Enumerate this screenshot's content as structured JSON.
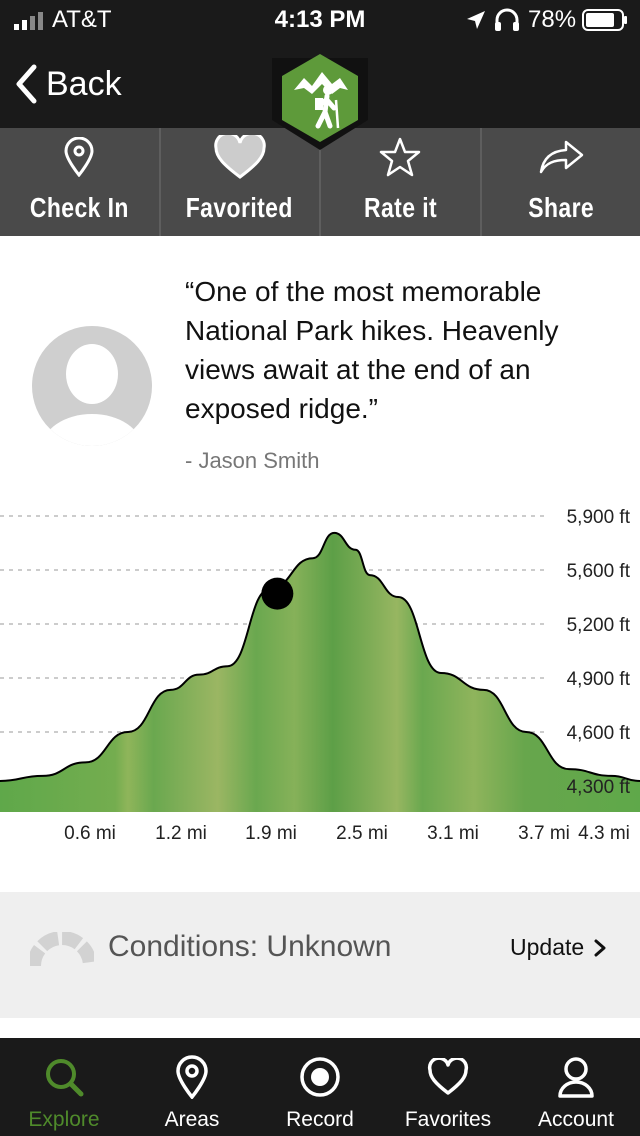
{
  "status_bar": {
    "carrier": "AT&T",
    "time": "4:13 PM",
    "battery": "78%"
  },
  "nav": {
    "back_label": "Back",
    "logo_icon": "hiker-icon"
  },
  "actions": [
    {
      "label": "Check In",
      "icon": "location-pin-icon"
    },
    {
      "label": "Favorited",
      "icon": "heart-filled-icon"
    },
    {
      "label": "Rate it",
      "icon": "star-icon"
    },
    {
      "label": "Share",
      "icon": "share-arrow-icon"
    }
  ],
  "review": {
    "quote": "“One of the most memorable National Park hikes. Heavenly views await at the end of an exposed ridge.”",
    "author": "- Jason Smith"
  },
  "chart_data": {
    "type": "area",
    "y_tick_labels": [
      "5,900 ft",
      "5,600 ft",
      "5,200 ft",
      "4,900 ft",
      "4,600 ft",
      "4,300 ft"
    ],
    "x_tick_labels": [
      "0.6 mi",
      "1.2 mi",
      "1.9 mi",
      "2.5 mi",
      "3.1 mi",
      "3.7 mi",
      "4.3 mi"
    ],
    "x": [
      0,
      0.3,
      0.6,
      0.9,
      1.2,
      1.4,
      1.6,
      1.9,
      2.2,
      2.35,
      2.5,
      2.6,
      2.8,
      3.1,
      3.4,
      3.7,
      4.0,
      4.3,
      4.5
    ],
    "elevation_ft": [
      4330,
      4360,
      4440,
      4620,
      4870,
      4960,
      5010,
      5470,
      5650,
      5800,
      5700,
      5550,
      5420,
      4970,
      4870,
      4620,
      4400,
      4360,
      4330
    ],
    "marker": {
      "x": 1.95,
      "elevation_ft": 5440
    },
    "colors": {
      "fill": "#6aa84f",
      "line": "#000000",
      "grid": "#bbbbbb"
    }
  },
  "conditions": {
    "label": "Conditions: Unknown",
    "update_label": "Update",
    "icon": "gauge-icon"
  },
  "tabs": [
    {
      "label": "Explore",
      "icon": "search-icon",
      "active": true
    },
    {
      "label": "Areas",
      "icon": "location-pin-icon",
      "active": false
    },
    {
      "label": "Record",
      "icon": "record-icon",
      "active": false
    },
    {
      "label": "Favorites",
      "icon": "heart-outline-icon",
      "active": false
    },
    {
      "label": "Account",
      "icon": "user-icon",
      "active": false
    }
  ],
  "colors": {
    "accent": "#4f8a2b",
    "bar_dark": "#1a1a1a",
    "action_bar": "#4a4a4a",
    "conditions_bg": "#efefef"
  }
}
